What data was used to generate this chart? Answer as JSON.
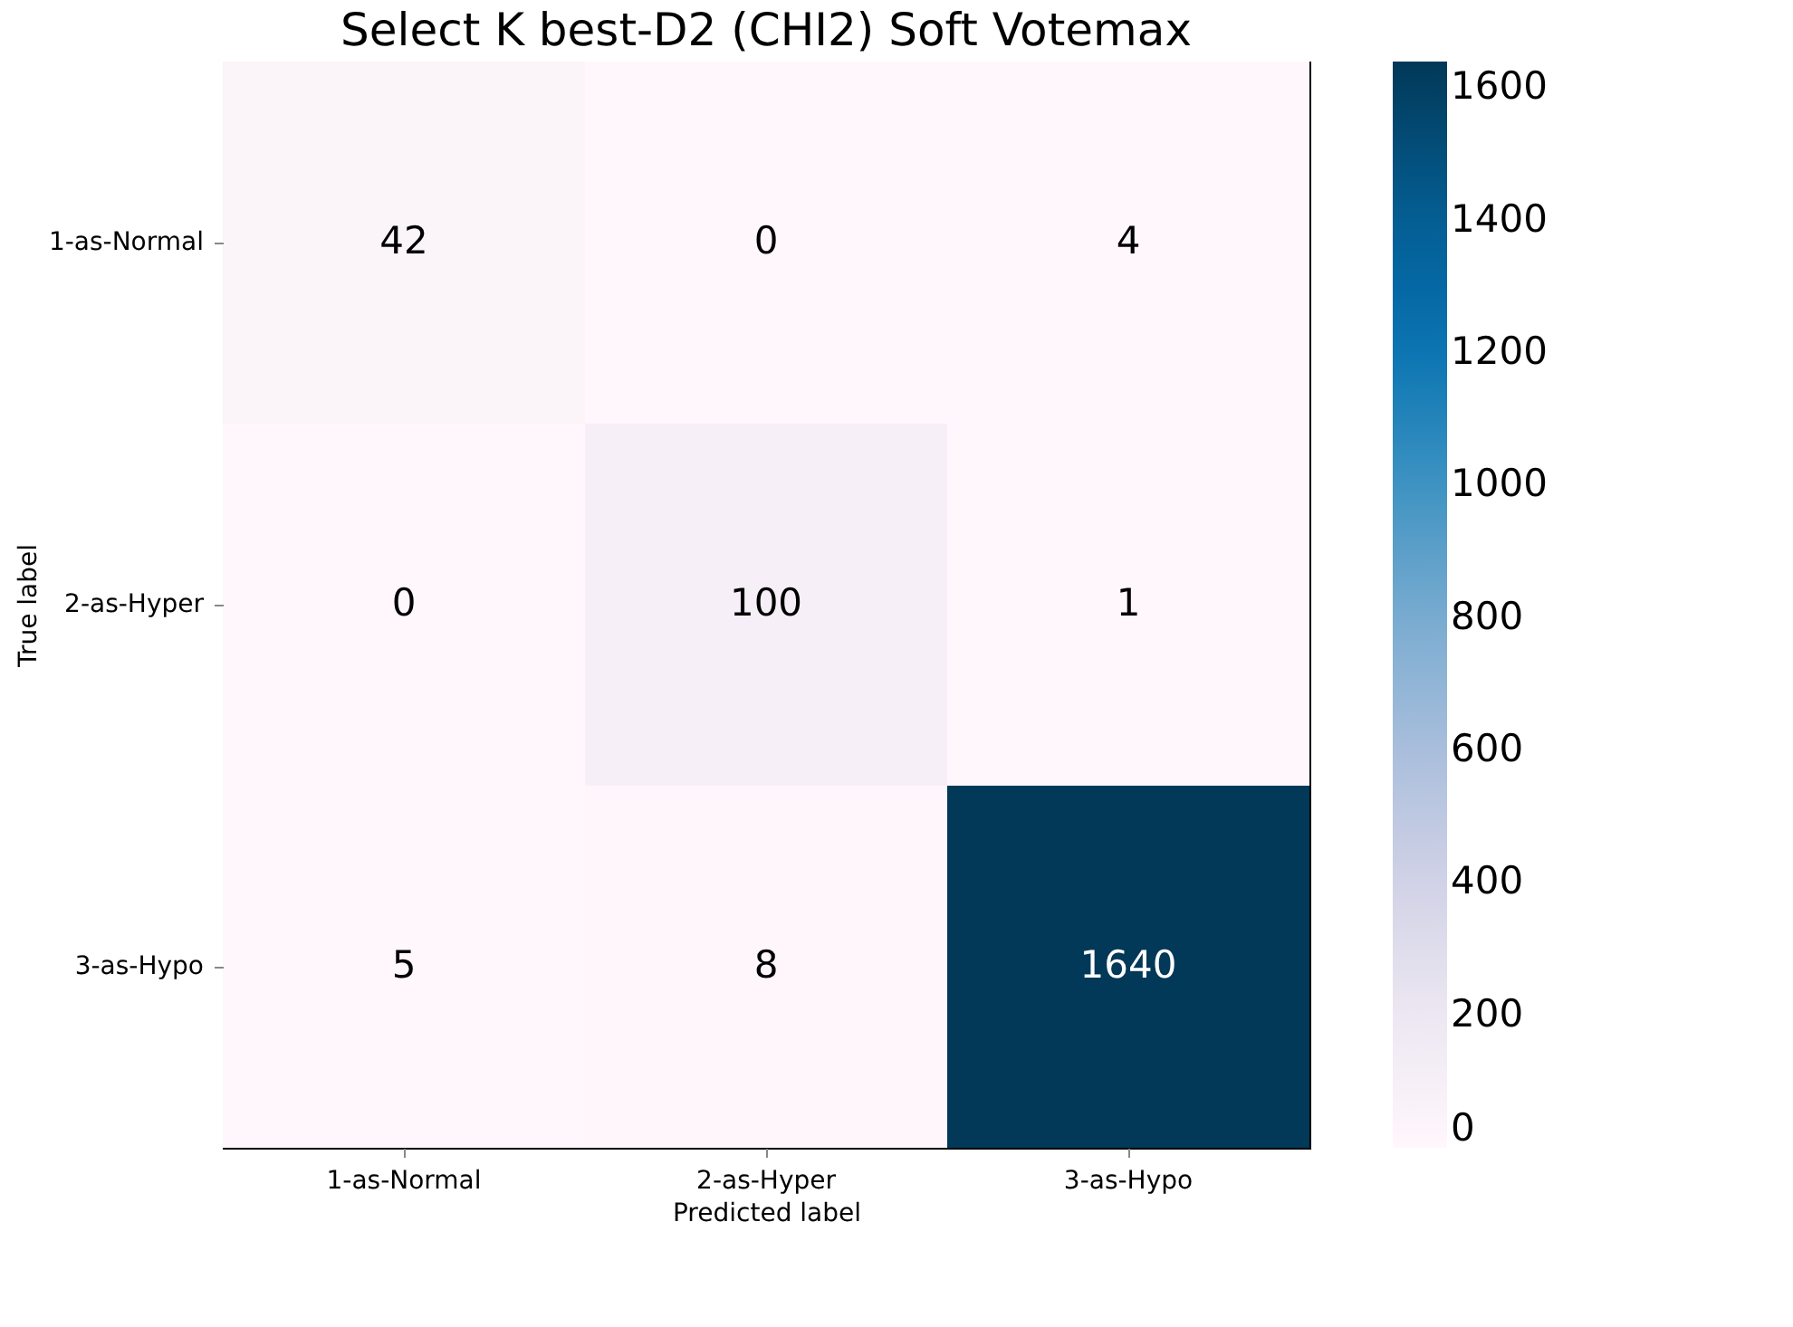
{
  "chart_data": {
    "type": "heatmap",
    "title": "Select K best-D2 (CHI2) Soft Votemax",
    "xlabel": "Predicted label",
    "ylabel": "True label",
    "categories": [
      "1-as-Normal",
      "2-as-Hyper",
      "3-as-Hypo"
    ],
    "y_categories": [
      "1-as-Normal",
      "2-as-Hyper",
      "3-as-Hypo"
    ],
    "cells": [
      [
        42,
        0,
        4
      ],
      [
        0,
        100,
        1
      ],
      [
        5,
        8,
        1640
      ]
    ],
    "clim": [
      0,
      1640
    ],
    "cticks": [
      0,
      200,
      400,
      600,
      800,
      1000,
      1200,
      1400,
      1600
    ],
    "data_labels": true,
    "grid": false
  }
}
